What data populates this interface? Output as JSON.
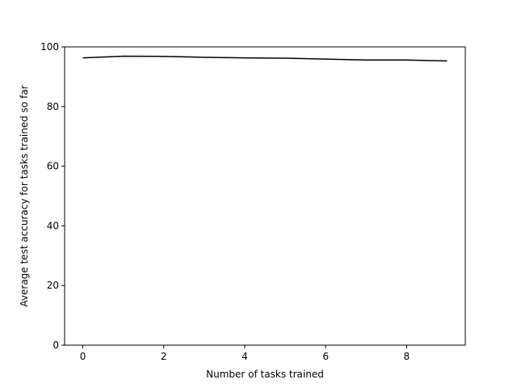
{
  "chart_data": {
    "type": "line",
    "title": "",
    "xlabel": "Number of tasks trained",
    "ylabel": "Average test accuracy for tasks trained so far",
    "xlim": [
      -0.45,
      9.45
    ],
    "ylim": [
      0,
      100
    ],
    "x_ticks": [
      0,
      2,
      4,
      6,
      8
    ],
    "y_ticks": [
      0,
      20,
      40,
      60,
      80,
      100
    ],
    "grid": false,
    "legend": "none",
    "series": [
      {
        "color": "#000000",
        "x": [
          0,
          1,
          2,
          3,
          4,
          5,
          6,
          7,
          8,
          9
        ],
        "y": [
          96.3,
          96.9,
          96.8,
          96.5,
          96.3,
          96.2,
          95.9,
          95.6,
          95.6,
          95.3
        ]
      }
    ]
  }
}
